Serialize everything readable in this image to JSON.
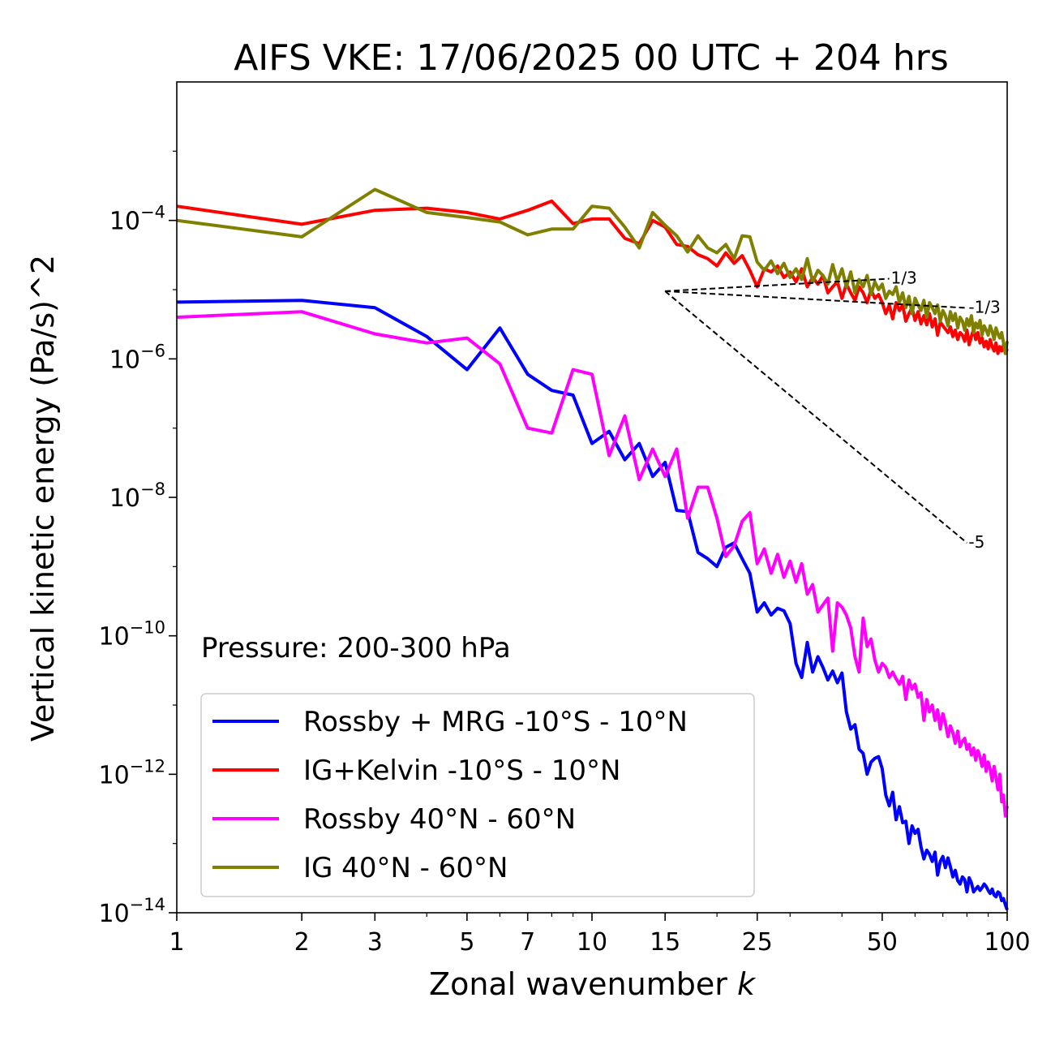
{
  "chart_data": {
    "type": "line",
    "title": "AIFS VKE: 17/06/2025 00 UTC + 204 hrs",
    "xlabel": "Zonal wavenumber k",
    "xlabel_main": "Zonal wavenumber ",
    "xlabel_var": "k",
    "ylabel": "Vertical kinetic energy (Pa/s)^2",
    "x_scale": "log",
    "y_scale": "log",
    "xlim": [
      1,
      100
    ],
    "ylim": [
      1e-14,
      0.01
    ],
    "x_ticks": [
      1,
      2,
      3,
      5,
      7,
      10,
      15,
      25,
      50,
      100
    ],
    "x_tick_labels": [
      "1",
      "2",
      "3",
      "5",
      "7",
      "10",
      "15",
      "25",
      "50",
      "100"
    ],
    "y_ticks": [
      1e-14,
      1e-12,
      1e-10,
      1e-08,
      1e-06,
      0.0001
    ],
    "y_tick_labels": [
      {
        "base": "10",
        "exp": "−14"
      },
      {
        "base": "10",
        "exp": "−12"
      },
      {
        "base": "10",
        "exp": "−10"
      },
      {
        "base": "10",
        "exp": "−8"
      },
      {
        "base": "10",
        "exp": "−6"
      },
      {
        "base": "10",
        "exp": "−4"
      }
    ],
    "annotation": "Pressure: 200-300 hPa",
    "legend_position": "lower-left",
    "grid": false,
    "series": [
      {
        "name": "Rossby + MRG -10°S - 10°N",
        "color": "#0000ff",
        "x": [
          1,
          2,
          3,
          4,
          5,
          6,
          7,
          8,
          9,
          10,
          11,
          12,
          13,
          14,
          15,
          16,
          17,
          18,
          19,
          20,
          21,
          22,
          23,
          24,
          25,
          26,
          27,
          28,
          29,
          30,
          31,
          32,
          33,
          34,
          35,
          36,
          37,
          38,
          39,
          40,
          41,
          42,
          43,
          44,
          45,
          46,
          47,
          48,
          49,
          50,
          51,
          52,
          53,
          54,
          55,
          56,
          57,
          58,
          59,
          60,
          61,
          62,
          63,
          64,
          65,
          66,
          67,
          68,
          69,
          70,
          71,
          72,
          73,
          74,
          75,
          76,
          77,
          78,
          79,
          80,
          81,
          82,
          83,
          84,
          85,
          86,
          87,
          88,
          89,
          90,
          91,
          92,
          93,
          94,
          95,
          96,
          97,
          98,
          99,
          100
        ],
        "y": [
          6.6e-06,
          7e-06,
          5.5e-06,
          2.1e-06,
          7e-07,
          2.8e-06,
          6e-07,
          3.5e-07,
          3e-07,
          6e-08,
          9e-08,
          3.5e-08,
          6e-08,
          2e-08,
          3.2e-08,
          6.5e-09,
          6.2e-09,
          1.6e-09,
          1.3e-09,
          1e-09,
          1.9e-09,
          2.2e-09,
          1.3e-09,
          8e-10,
          2.2e-10,
          3e-10,
          2e-10,
          2.5e-10,
          2.3e-10,
          1.5e-10,
          4e-11,
          2.5e-11,
          8e-11,
          3e-11,
          5e-11,
          3.5e-11,
          2.3e-11,
          3.1e-11,
          2.1e-11,
          2.9e-11,
          8e-12,
          4.5e-12,
          5.2e-12,
          2.3e-12,
          2e-12,
          1e-12,
          1.5e-12,
          1.7e-12,
          1.8e-12,
          1.2e-12,
          5e-13,
          3.5e-13,
          5.5e-13,
          2.2e-13,
          3.4e-13,
          2e-13,
          2.1e-13,
          1e-13,
          1.8e-13,
          1.4e-13,
          1.6e-13,
          9e-14,
          6e-14,
          8e-14,
          7e-14,
          5.5e-14,
          7.5e-14,
          3.5e-14,
          5.5e-14,
          6.5e-14,
          4.5e-14,
          6.2e-14,
          4.6e-14,
          3.3e-14,
          4.1e-14,
          2.9e-14,
          2.6e-14,
          3.3e-14,
          3e-14,
          2e-14,
          3.2e-14,
          2.7e-14,
          2e-14,
          2.2e-14,
          2.4e-14,
          2.1e-14,
          2.3e-14,
          2.6e-14,
          2.4e-14,
          2.1e-14,
          1.9e-14,
          2.2e-14,
          1.8e-14,
          1.7e-14,
          2e-14,
          1.9e-14,
          1.5e-14,
          1.6e-14,
          1.3e-14,
          1.1e-14
        ]
      },
      {
        "name": "IG+Kelvin -10°S - 10°N",
        "color": "#ff0000",
        "x": [
          1,
          2,
          3,
          4,
          5,
          6,
          7,
          8,
          9,
          10,
          11,
          12,
          13,
          14,
          15,
          16,
          17,
          18,
          19,
          20,
          21,
          22,
          23,
          24,
          25,
          26,
          27,
          28,
          29,
          30,
          31,
          32,
          33,
          34,
          35,
          36,
          37,
          38,
          39,
          40,
          41,
          42,
          43,
          44,
          45,
          46,
          47,
          48,
          49,
          50,
          51,
          52,
          53,
          54,
          55,
          56,
          57,
          58,
          59,
          60,
          61,
          62,
          63,
          64,
          65,
          66,
          67,
          68,
          69,
          70,
          71,
          72,
          73,
          74,
          75,
          76,
          77,
          78,
          79,
          80,
          81,
          82,
          83,
          84,
          85,
          86,
          87,
          88,
          89,
          90,
          91,
          92,
          93,
          94,
          95,
          96,
          97,
          98,
          99,
          100
        ],
        "y": [
          0.00016,
          8.8e-05,
          0.00014,
          0.00015,
          0.00013,
          0.000105,
          0.00014,
          0.00019,
          9e-05,
          0.000105,
          0.000105,
          5.5e-05,
          4.6e-05,
          0.0001,
          8e-05,
          4.5e-05,
          4.2e-05,
          3.2e-05,
          2.8e-05,
          2.2e-05,
          3.4e-05,
          2.4e-05,
          3.1e-05,
          1.9e-05,
          1.1e-05,
          2e-05,
          1.8e-05,
          2.2e-05,
          1.5e-05,
          1.8e-05,
          1.3e-05,
          2e-05,
          1.1e-05,
          1.5e-05,
          1.2e-05,
          1.6e-05,
          9e-06,
          1.1e-05,
          1.3e-05,
          7.5e-06,
          1.2e-05,
          9e-06,
          7e-06,
          1.1e-05,
          9e-06,
          6.5e-06,
          1e-05,
          7.5e-06,
          8.5e-06,
          6.5e-06,
          4.5e-06,
          6e-06,
          3.8e-06,
          6.5e-06,
          5e-06,
          6e-06,
          3.5e-06,
          4.5e-06,
          5.5e-06,
          3.6e-06,
          4.8e-06,
          3.2e-06,
          4.2e-06,
          3.1e-06,
          4.5e-06,
          2.9e-06,
          3.8e-06,
          2.2e-06,
          3.4e-06,
          3e-06,
          2.7e-06,
          2.4e-06,
          2.9e-06,
          2.1e-06,
          2.6e-06,
          1.9e-06,
          2.4e-06,
          2.2e-06,
          1.8e-06,
          2.6e-06,
          1.6e-06,
          2.1e-06,
          2.7e-06,
          1.9e-06,
          2.4e-06,
          1.7e-06,
          2e-06,
          1.5e-06,
          1.8e-06,
          1.4e-06,
          1.9e-06,
          1.5e-06,
          1.3e-06,
          1.7e-06,
          1.2e-06,
          1.5e-06,
          1.3e-06,
          1.6e-06,
          1.2e-06,
          1.4e-06
        ]
      },
      {
        "name": "Rossby 40°N - 60°N",
        "color": "#ff00ff",
        "x": [
          1,
          2,
          3,
          4,
          5,
          6,
          7,
          8,
          9,
          10,
          11,
          12,
          13,
          14,
          15,
          16,
          17,
          18,
          19,
          20,
          21,
          22,
          23,
          24,
          25,
          26,
          27,
          28,
          29,
          30,
          31,
          32,
          33,
          34,
          35,
          36,
          37,
          38,
          39,
          40,
          41,
          42,
          43,
          44,
          45,
          46,
          47,
          48,
          49,
          50,
          51,
          52,
          53,
          54,
          55,
          56,
          57,
          58,
          59,
          60,
          61,
          62,
          63,
          64,
          65,
          66,
          67,
          68,
          69,
          70,
          71,
          72,
          73,
          74,
          75,
          76,
          77,
          78,
          79,
          80,
          81,
          82,
          83,
          84,
          85,
          86,
          87,
          88,
          89,
          90,
          91,
          92,
          93,
          94,
          95,
          96,
          97,
          98,
          99,
          100
        ],
        "y": [
          4e-06,
          4.8e-06,
          2.3e-06,
          1.7e-06,
          2e-06,
          8.5e-07,
          1e-07,
          8.5e-08,
          7e-07,
          6e-07,
          4e-08,
          1.5e-07,
          1.8e-08,
          5e-08,
          2e-08,
          5e-08,
          5e-09,
          1.4e-08,
          1.4e-08,
          5e-09,
          1.4e-09,
          2e-09,
          4.5e-09,
          6e-09,
          1.1e-09,
          1.8e-09,
          8e-10,
          1.5e-09,
          7e-10,
          1.2e-09,
          6e-10,
          1.1e-09,
          4e-10,
          5.5e-10,
          2.2e-10,
          2.8e-10,
          3.5e-10,
          6e-11,
          3e-10,
          2.6e-10,
          2e-10,
          1.3e-10,
          5e-11,
          3e-11,
          1.8e-10,
          7e-11,
          9e-11,
          4.5e-11,
          3e-11,
          4e-11,
          3.5e-11,
          2.5e-11,
          3e-11,
          2.4e-11,
          2e-11,
          2.6e-11,
          1.2e-11,
          2.3e-11,
          1.7e-11,
          2e-11,
          1.3e-11,
          1.5e-11,
          6e-12,
          1.2e-11,
          8e-12,
          1e-11,
          6e-12,
          8.5e-12,
          4.5e-12,
          7.5e-12,
          5.5e-12,
          3.5e-12,
          5e-12,
          4e-12,
          2.8e-12,
          4.2e-12,
          2.5e-12,
          3e-12,
          3.3e-12,
          2.3e-12,
          2.7e-12,
          1.9e-12,
          2.4e-12,
          1.6e-12,
          2.2e-12,
          1.8e-12,
          1.3e-12,
          1.9e-12,
          1.1e-12,
          1.5e-12,
          1.2e-12,
          8e-13,
          1.3e-12,
          9e-13,
          6e-13,
          1e-12,
          4e-13,
          5e-13,
          2.5e-13,
          3.5e-13
        ]
      },
      {
        "name": "IG 40°N - 60°N",
        "color": "#808000",
        "x": [
          1,
          2,
          3,
          4,
          5,
          6,
          7,
          8,
          9,
          10,
          11,
          12,
          13,
          14,
          15,
          16,
          17,
          18,
          19,
          20,
          21,
          22,
          23,
          24,
          25,
          26,
          27,
          28,
          29,
          30,
          31,
          32,
          33,
          34,
          35,
          36,
          37,
          38,
          39,
          40,
          41,
          42,
          43,
          44,
          45,
          46,
          47,
          48,
          49,
          50,
          51,
          52,
          53,
          54,
          55,
          56,
          57,
          58,
          59,
          60,
          61,
          62,
          63,
          64,
          65,
          66,
          67,
          68,
          69,
          70,
          71,
          72,
          73,
          74,
          75,
          76,
          77,
          78,
          79,
          80,
          81,
          82,
          83,
          84,
          85,
          86,
          87,
          88,
          89,
          90,
          91,
          92,
          93,
          94,
          95,
          96,
          97,
          98,
          99,
          100
        ],
        "y": [
          0.0001,
          5.8e-05,
          0.00028,
          0.00013,
          0.00011,
          9.5e-05,
          6.2e-05,
          7.5e-05,
          7.5e-05,
          0.00016,
          0.00015,
          8e-05,
          4e-05,
          0.00013,
          8.5e-05,
          6e-05,
          3.5e-05,
          6e-05,
          4e-05,
          3.4e-05,
          4.5e-05,
          2.8e-05,
          6e-05,
          5.8e-05,
          2.5e-05,
          1.9e-05,
          2.6e-05,
          1.7e-05,
          2.4e-05,
          1.5e-05,
          2e-05,
          1.4e-05,
          2.8e-05,
          1.3e-05,
          1.9e-05,
          1.6e-05,
          1.2e-05,
          2.3e-05,
          1.3e-05,
          2e-05,
          1.1e-05,
          1.8e-05,
          9e-06,
          1.4e-05,
          1.1e-05,
          1.6e-05,
          8.5e-06,
          1.3e-05,
          1e-05,
          1.2e-05,
          7.5e-06,
          9.5e-06,
          8.5e-06,
          1.1e-05,
          6.5e-06,
          9e-06,
          5.5e-06,
          8e-06,
          4.5e-06,
          7.5e-06,
          6e-06,
          5e-06,
          7e-06,
          4e-06,
          6.5e-06,
          5.5e-06,
          4.5e-06,
          6e-06,
          3.5e-06,
          5e-06,
          4.2e-06,
          3e-06,
          4.8e-06,
          3.6e-06,
          4.5e-06,
          2.8e-06,
          4e-06,
          3.5e-06,
          2.6e-06,
          3.8e-06,
          3e-06,
          4.2e-06,
          2.4e-06,
          3.3e-06,
          2.8e-06,
          3.6e-06,
          2.2e-06,
          3e-06,
          2.6e-06,
          2.2e-06,
          3e-06,
          2.5e-06,
          1.9e-06,
          2.8e-06,
          2.3e-06,
          2e-06,
          2.4e-06,
          1.7e-06,
          1.2e-06,
          1.8e-06
        ]
      }
    ],
    "reference_slopes": [
      {
        "label": "1/3",
        "slope": 0.3333,
        "x0": 15,
        "y0": 9.5e-06,
        "x1": 52
      },
      {
        "label": "-1/3",
        "slope": -0.3333,
        "x0": 15,
        "y0": 9.5e-06,
        "x1": 80
      },
      {
        "label": "-5",
        "slope": -5,
        "x0": 15,
        "y0": 9.5e-06,
        "x1": 80
      }
    ]
  }
}
